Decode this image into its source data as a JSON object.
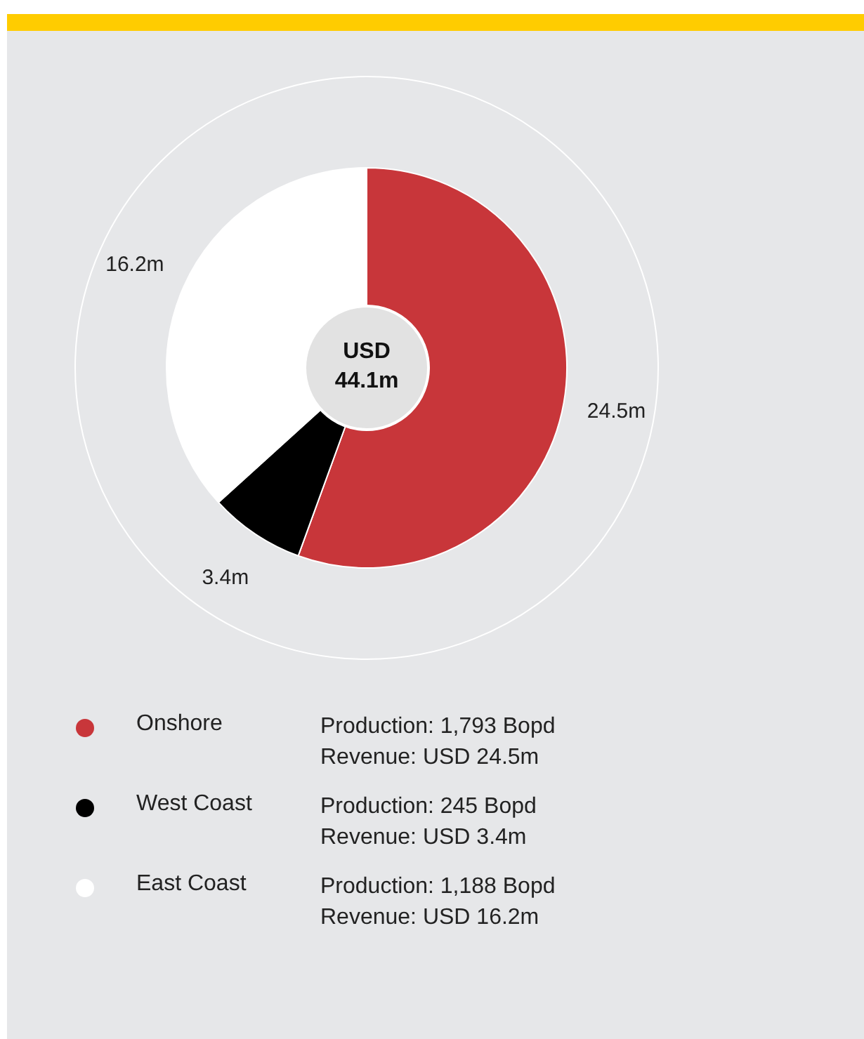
{
  "chart_data": {
    "type": "donut",
    "title": "USD 44.1m",
    "categories": [
      "Onshore",
      "West Coast",
      "East Coast"
    ],
    "values": [
      24.5,
      3.4,
      16.2
    ],
    "colors": [
      "#c8363a",
      "#000000",
      "#ffffff"
    ],
    "value_labels": [
      "24.5m",
      "3.4m",
      "16.2m"
    ],
    "legend": "bottom",
    "annotations": [
      "Production: 1,793 Bopd",
      "Revenue: USD 24.5m",
      "Production: 245 Bopd",
      "Revenue: USD 3.4m",
      "Production: 1,188 Bopd",
      "Revenue: USD 16.2m"
    ]
  }
}
